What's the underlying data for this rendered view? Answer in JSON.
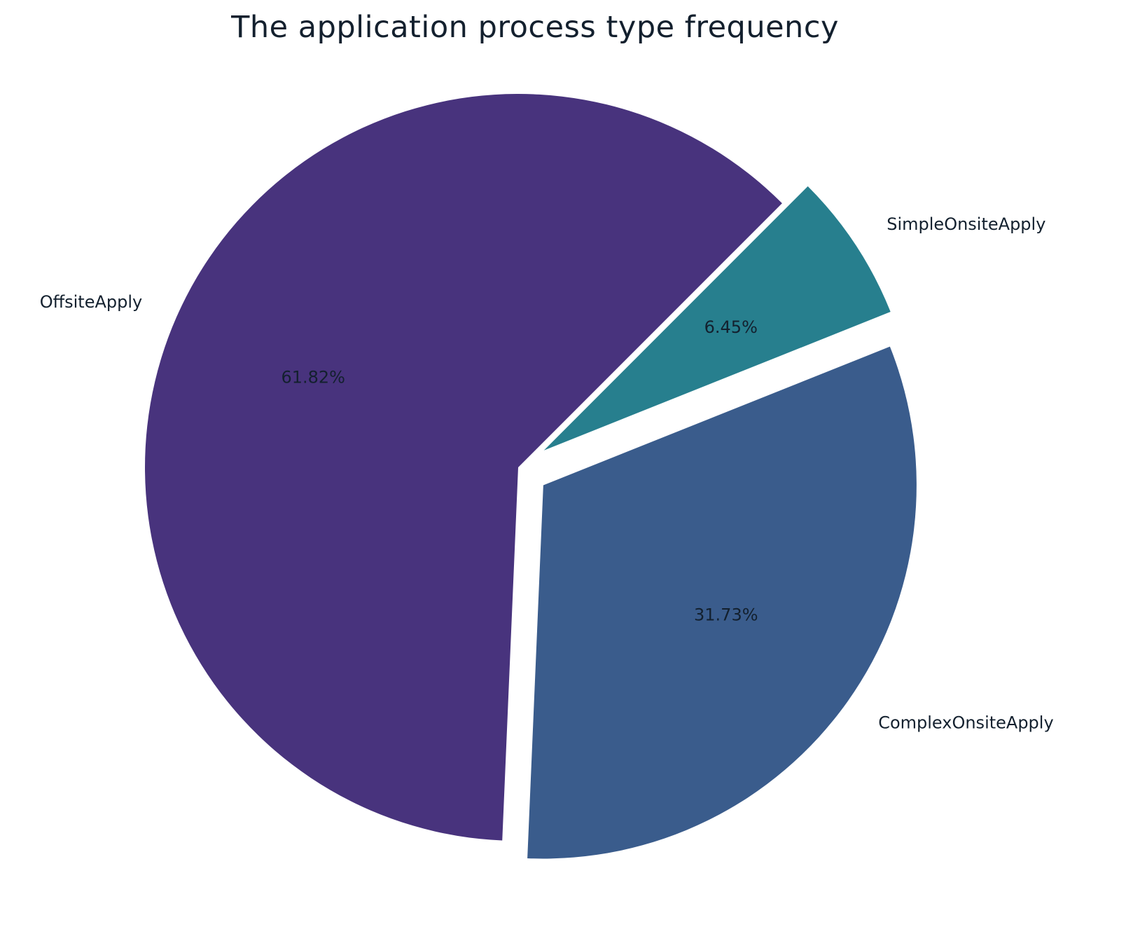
{
  "chart_data": {
    "type": "pie",
    "title": "The application process type frequency",
    "slices": [
      {
        "label": "SimpleOnsiteApply",
        "value": 6.45,
        "pct_label": "6.45%",
        "color": "#277f8e",
        "exploded": true
      },
      {
        "label": "ComplexOnsiteApply",
        "value": 31.73,
        "pct_label": "31.73%",
        "color": "#3a5c8c",
        "exploded": true
      },
      {
        "label": "OffsiteApply",
        "value": 61.82,
        "pct_label": "61.82%",
        "color": "#48337d",
        "exploded": false
      }
    ]
  }
}
